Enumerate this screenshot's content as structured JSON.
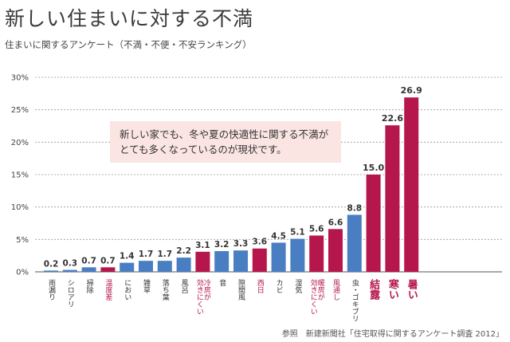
{
  "title": "新しい住まいに対する不満",
  "subtitle": "住まいに関するアンケート（不満・不便・不安ランキング）",
  "callout": [
    "新しい家でも、冬や夏の快適性に関する不満が",
    "とても多くなっているのが現状です。"
  ],
  "source": "参照　新建新聞社「住宅取得に関するアンケート調査 2012」",
  "colors": {
    "blue": "#4a7ec2",
    "red": "#b5174c",
    "grid": "#999999",
    "callout_bg": "#fbe5e3"
  },
  "chart_data": {
    "type": "bar",
    "title": "",
    "xlabel": "",
    "ylabel": "",
    "ylim": [
      0,
      30
    ],
    "yticks": [
      0,
      5,
      10,
      15,
      20,
      25,
      30
    ],
    "ytick_labels": [
      "0%",
      "5%",
      "10%",
      "15%",
      "20%",
      "25%",
      "30%"
    ],
    "grid": true,
    "categories": [
      "雨漏り",
      "シロアリ",
      "掃除",
      "温度差",
      "におい",
      "雑草",
      "落ち葉",
      "風呂",
      "冷房が効きにくい",
      "音",
      "隙間風",
      "西日",
      "カビ",
      "湿気",
      "暖房が効きにくい",
      "風通し",
      "虫・ゴキブリ",
      "結露",
      "寒い",
      "暑い"
    ],
    "category_lines": [
      [
        "雨漏り"
      ],
      [
        "シロアリ"
      ],
      [
        "掃除"
      ],
      [
        "温度差"
      ],
      [
        "におい"
      ],
      [
        "雑草"
      ],
      [
        "落ち葉"
      ],
      [
        "風呂"
      ],
      [
        "冷房が",
        "効きにくい"
      ],
      [
        "音"
      ],
      [
        "隙間風"
      ],
      [
        "西日"
      ],
      [
        "カビ"
      ],
      [
        "湿気"
      ],
      [
        "暖房が",
        "効きにくい"
      ],
      [
        "風通し"
      ],
      [
        "虫・ゴキブリ"
      ],
      [
        "結露"
      ],
      [
        "寒い"
      ],
      [
        "暑い"
      ]
    ],
    "values": [
      0.2,
      0.3,
      0.7,
      0.7,
      1.4,
      1.7,
      1.7,
      2.2,
      3.1,
      3.2,
      3.3,
      3.6,
      4.5,
      5.1,
      5.6,
      6.6,
      8.8,
      15.0,
      22.6,
      26.9
    ],
    "value_labels": [
      "0.2",
      "0.3",
      "0.7",
      "0.7",
      "1.4",
      "1.7",
      "1.7",
      "2.2",
      "3.1",
      "3.2",
      "3.3",
      "3.6",
      "4.5",
      "5.1",
      "5.6",
      "6.6",
      "8.8",
      "15.0",
      "22.6",
      "26.9"
    ],
    "highlight": [
      false,
      false,
      false,
      true,
      false,
      false,
      false,
      false,
      true,
      false,
      false,
      true,
      false,
      false,
      true,
      true,
      false,
      true,
      true,
      true
    ],
    "big_label": [
      false,
      false,
      false,
      false,
      false,
      false,
      false,
      false,
      false,
      false,
      false,
      false,
      false,
      false,
      false,
      false,
      false,
      true,
      true,
      true
    ]
  }
}
